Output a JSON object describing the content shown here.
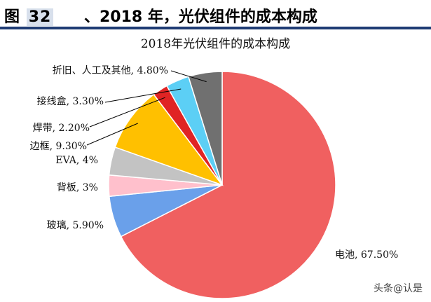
{
  "figure": {
    "label_prefix": "图",
    "label_number": "32",
    "title": "、2018 年，光伏组件的成本构成"
  },
  "watermark": "头条@认是",
  "chart_data": {
    "type": "pie",
    "title": "2018年光伏组件的成本构成",
    "slices": [
      {
        "name": "电池",
        "value": 67.5,
        "label": "电池, 67.50%",
        "color": "#f06060"
      },
      {
        "name": "玻璃",
        "value": 5.9,
        "label": "玻璃, 5.90%",
        "color": "#6aa0ea"
      },
      {
        "name": "背板",
        "value": 3,
        "label": "背板, 3%",
        "color": "#ffc0cc"
      },
      {
        "name": "EVA",
        "value": 4,
        "label": "EVA, 4%",
        "color": "#c3c3c3"
      },
      {
        "name": "边框",
        "value": 9.3,
        "label": "边框, 9.30%",
        "color": "#ffc000"
      },
      {
        "name": "焊带",
        "value": 2.2,
        "label": "焊带, 2.20%",
        "color": "#e02424"
      },
      {
        "name": "接线盒",
        "value": 3.3,
        "label": "接线盒, 3.30%",
        "color": "#5ccff5"
      },
      {
        "name": "折旧、人工及其他",
        "value": 4.8,
        "label": "折旧、人工及其他, 4.80%",
        "color": "#707070"
      }
    ]
  }
}
